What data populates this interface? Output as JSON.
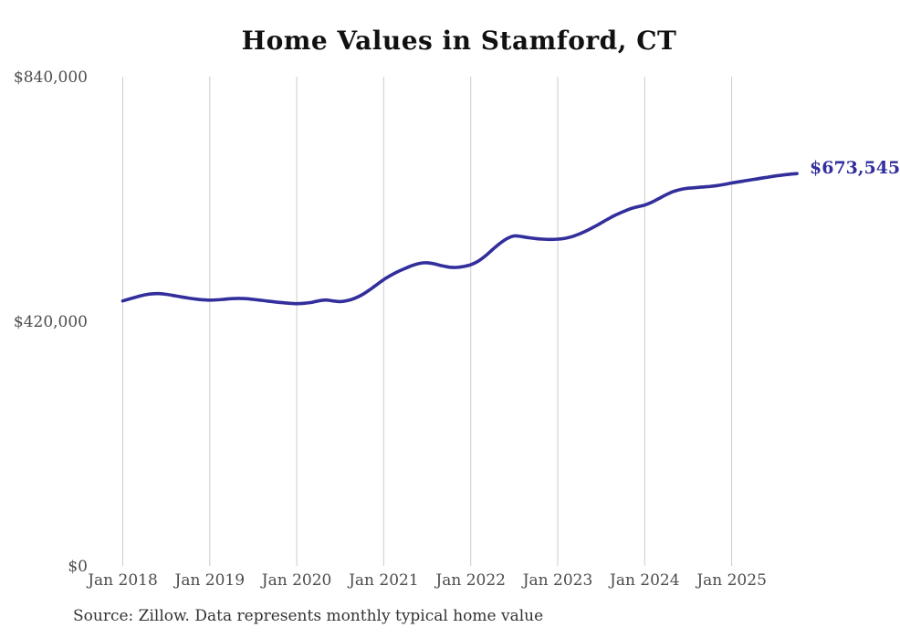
{
  "header": {
    "title": "Home Values in Stamford, CT"
  },
  "footer": {
    "source": "Source: Zillow. Data represents monthly typical home value"
  },
  "chart_data": {
    "type": "line",
    "title": "Home Values in Stamford, CT",
    "series_name": "Monthly typical home value",
    "xlabel": "",
    "ylabel": "",
    "ylim": [
      0,
      840000
    ],
    "grid": "vertical-only",
    "legend": "none",
    "line_color": "#322e9b",
    "grid_color": "#cccccc",
    "tick_color": "#4c4c4c",
    "end_label": "$673,545",
    "end_value": 673545,
    "y_ticks": [
      {
        "label": "$840,000",
        "value": 840000
      },
      {
        "label": "$420,000",
        "value": 420000
      },
      {
        "label": "$0",
        "value": 0
      }
    ],
    "x_ticks": [
      {
        "label": "Jan 2018",
        "month": "2018-01"
      },
      {
        "label": "Jan 2019",
        "month": "2019-01"
      },
      {
        "label": "Jan 2020",
        "month": "2020-01"
      },
      {
        "label": "Jan 2021",
        "month": "2021-01"
      },
      {
        "label": "Jan 2022",
        "month": "2022-01"
      },
      {
        "label": "Jan 2023",
        "month": "2023-01"
      },
      {
        "label": "Jan 2024",
        "month": "2024-01"
      },
      {
        "label": "Jan 2025",
        "month": "2025-01"
      }
    ],
    "x": [
      "2018-01",
      "2018-02",
      "2018-03",
      "2018-04",
      "2018-05",
      "2018-06",
      "2018-07",
      "2018-08",
      "2018-09",
      "2018-10",
      "2018-11",
      "2018-12",
      "2019-01",
      "2019-02",
      "2019-03",
      "2019-04",
      "2019-05",
      "2019-06",
      "2019-07",
      "2019-08",
      "2019-09",
      "2019-10",
      "2019-11",
      "2019-12",
      "2020-01",
      "2020-02",
      "2020-03",
      "2020-04",
      "2020-05",
      "2020-06",
      "2020-07",
      "2020-08",
      "2020-09",
      "2020-10",
      "2020-11",
      "2020-12",
      "2021-01",
      "2021-02",
      "2021-03",
      "2021-04",
      "2021-05",
      "2021-06",
      "2021-07",
      "2021-08",
      "2021-09",
      "2021-10",
      "2021-11",
      "2021-12",
      "2022-01",
      "2022-02",
      "2022-03",
      "2022-04",
      "2022-05",
      "2022-06",
      "2022-07",
      "2022-08",
      "2022-09",
      "2022-10",
      "2022-11",
      "2022-12",
      "2023-01",
      "2023-02",
      "2023-03",
      "2023-04",
      "2023-05",
      "2023-06",
      "2023-07",
      "2023-08",
      "2023-09",
      "2023-10",
      "2023-11",
      "2023-12",
      "2024-01",
      "2024-02",
      "2024-03",
      "2024-04",
      "2024-05",
      "2024-06",
      "2024-07",
      "2024-08",
      "2024-09",
      "2024-10",
      "2024-11",
      "2024-12",
      "2025-01",
      "2025-02",
      "2025-03",
      "2025-04",
      "2025-05",
      "2025-06",
      "2025-07",
      "2025-08",
      "2025-09",
      "2025-10"
    ],
    "values": [
      455000,
      458600,
      462200,
      465300,
      467200,
      467500,
      466300,
      464200,
      462000,
      459900,
      458200,
      457000,
      456400,
      456800,
      457800,
      458900,
      459300,
      458800,
      457600,
      456200,
      454700,
      453200,
      451900,
      450900,
      450300,
      450800,
      452300,
      455000,
      456500,
      455000,
      453800,
      455500,
      459500,
      465500,
      473500,
      482500,
      491500,
      499000,
      505500,
      511000,
      516000,
      519500,
      520500,
      518500,
      515500,
      513000,
      512500,
      514000,
      517000,
      523000,
      532000,
      543000,
      553500,
      562000,
      566500,
      565500,
      563500,
      562000,
      561000,
      560500,
      561000,
      562500,
      565500,
      570000,
      575500,
      582000,
      589000,
      596000,
      602500,
      608000,
      613000,
      616500,
      619500,
      624500,
      631000,
      637500,
      643000,
      646500,
      648500,
      649500,
      650500,
      651500,
      653000,
      655000,
      657500,
      659500,
      661500,
      663500,
      665500,
      667500,
      669500,
      671000,
      672500,
      673545
    ]
  }
}
